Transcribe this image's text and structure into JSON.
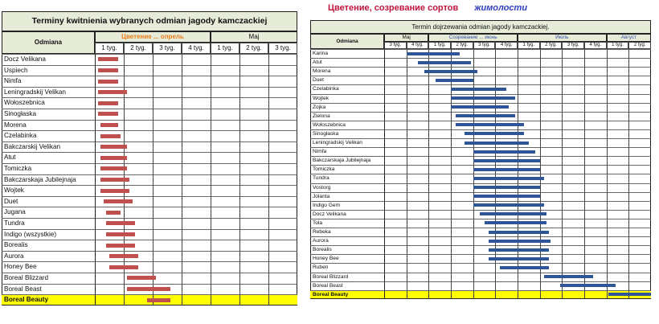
{
  "top_caption": {
    "part1": "Цветение, созревание сортов",
    "part2": "жимолости",
    "color1": "#c0143c",
    "color2": "#2f3fbf"
  },
  "chart_data": [
    {
      "type": "gantt",
      "title": "Terminy kwitnienia wybranych odmian jagody kamczackiej",
      "row_header": "Odmiana",
      "groups": [
        {
          "label": "Цветение ... опрель",
          "span": 4,
          "color": "#e87d1e"
        },
        {
          "label": "Maj",
          "span": 3,
          "color": "#111111"
        }
      ],
      "columns": [
        "1 tyg.",
        "2 tyg.",
        "3 tyg.",
        "4 tyg.",
        "1 tyg.",
        "2 tyg.",
        "3 tyg."
      ],
      "bar_color": "#c0504d",
      "bars": [
        {
          "name": "Docz Velikana",
          "start": 0.1,
          "end": 0.8
        },
        {
          "name": "Uspiech",
          "start": 0.1,
          "end": 0.8
        },
        {
          "name": "Nimfa",
          "start": 0.1,
          "end": 0.8
        },
        {
          "name": "Leningradskij Velikan",
          "start": 0.1,
          "end": 1.1
        },
        {
          "name": "Wołoszebnica",
          "start": 0.1,
          "end": 0.8
        },
        {
          "name": "Sinogłaska",
          "start": 0.1,
          "end": 0.8
        },
        {
          "name": "Morena",
          "start": 0.2,
          "end": 0.8
        },
        {
          "name": "Czelabinka",
          "start": 0.2,
          "end": 0.9
        },
        {
          "name": "Bakczarskij Velikan",
          "start": 0.2,
          "end": 1.1
        },
        {
          "name": "Atut",
          "start": 0.2,
          "end": 1.1
        },
        {
          "name": "Tomiczka",
          "start": 0.2,
          "end": 1.1
        },
        {
          "name": "Bakczarskaja Jubilejnaja",
          "start": 0.2,
          "end": 1.2
        },
        {
          "name": "Wojtek",
          "start": 0.2,
          "end": 1.2
        },
        {
          "name": "Duet",
          "start": 0.3,
          "end": 1.3
        },
        {
          "name": "Jugana",
          "start": 0.4,
          "end": 0.9
        },
        {
          "name": "Tundra",
          "start": 0.4,
          "end": 1.4
        },
        {
          "name": "Indigo (wszystkie)",
          "start": 0.4,
          "end": 1.4
        },
        {
          "name": "Borealis",
          "start": 0.4,
          "end": 1.4
        },
        {
          "name": "Aurora",
          "start": 0.5,
          "end": 1.5
        },
        {
          "name": "Honey Bee",
          "start": 0.5,
          "end": 1.5
        },
        {
          "name": "Boreal Blizzard",
          "start": 1.1,
          "end": 2.1
        },
        {
          "name": "Boreal Beast",
          "start": 1.1,
          "end": 2.6
        },
        {
          "name": "Boreal Beauty",
          "start": 1.8,
          "end": 2.6,
          "highlight": true
        }
      ],
      "highlight_color": "#ffff00"
    },
    {
      "type": "gantt",
      "title": "Termin dojrzewania odmian jagody kamczackiej.",
      "row_header": "Odmiana",
      "groups": [
        {
          "label": "Maj",
          "span": 2,
          "color": "#111111"
        },
        {
          "label": "Созревание ... июнь",
          "span": 4,
          "color": "#3a4fa8"
        },
        {
          "label": "Июль",
          "span": 4,
          "color": "#3a4fa8"
        },
        {
          "label": "Август",
          "span": 2,
          "color": "#3a4fa8"
        }
      ],
      "columns": [
        "3 tyg.",
        "4 tyg.",
        "1 tyg.",
        "2 tyg.",
        "3 tyg.",
        "4 tyg.",
        "1 tyg.",
        "2 tyg.",
        "3 tyg.",
        "4 tyg.",
        "1 tyg.",
        "2 tyg."
      ],
      "bar_color": "#2f5597",
      "bars": [
        {
          "name": "Karina",
          "start": 1.0,
          "end": 3.4
        },
        {
          "name": "Atut",
          "start": 1.5,
          "end": 3.9
        },
        {
          "name": "Morena",
          "start": 1.8,
          "end": 4.2
        },
        {
          "name": "Duet",
          "start": 2.3,
          "end": 4.0
        },
        {
          "name": "Czelabinka",
          "start": 3.0,
          "end": 5.5
        },
        {
          "name": "Wojtek",
          "start": 3.0,
          "end": 5.9
        },
        {
          "name": "Zojka",
          "start": 3.0,
          "end": 5.6
        },
        {
          "name": "Zielona",
          "start": 3.2,
          "end": 5.9
        },
        {
          "name": "Wołoszebnica",
          "start": 3.2,
          "end": 6.3
        },
        {
          "name": "Sinogłaska",
          "start": 3.6,
          "end": 6.3
        },
        {
          "name": "Leningradskij Velikan",
          "start": 3.6,
          "end": 6.5
        },
        {
          "name": "Nimfa",
          "start": 4.0,
          "end": 6.8
        },
        {
          "name": "Bakczarskaja Jubilejnaja",
          "start": 4.0,
          "end": 7.0
        },
        {
          "name": "Tomiczka",
          "start": 4.0,
          "end": 7.0
        },
        {
          "name": "Tundra",
          "start": 4.0,
          "end": 7.2
        },
        {
          "name": "Vostorg",
          "start": 4.0,
          "end": 7.0
        },
        {
          "name": "Jolanta",
          "start": 4.0,
          "end": 7.0
        },
        {
          "name": "Indigo Gem",
          "start": 4.0,
          "end": 7.2
        },
        {
          "name": "Docz Velikana",
          "start": 4.3,
          "end": 7.3
        },
        {
          "name": "Tola",
          "start": 4.5,
          "end": 7.3
        },
        {
          "name": "Rebeka",
          "start": 4.7,
          "end": 7.4
        },
        {
          "name": "Aurora",
          "start": 4.7,
          "end": 7.5
        },
        {
          "name": "Borealis",
          "start": 4.7,
          "end": 7.4
        },
        {
          "name": "Honey Bee",
          "start": 4.7,
          "end": 7.4
        },
        {
          "name": "Ruben",
          "start": 5.2,
          "end": 7.4
        },
        {
          "name": "Boreal Blizzard",
          "start": 7.2,
          "end": 9.4
        },
        {
          "name": "Boreal Beast",
          "start": 7.9,
          "end": 10.4
        },
        {
          "name": "Boreal Beauty",
          "start": 10.1,
          "end": 12.0,
          "highlight": true
        }
      ],
      "highlight_color": "#ffff00"
    }
  ]
}
